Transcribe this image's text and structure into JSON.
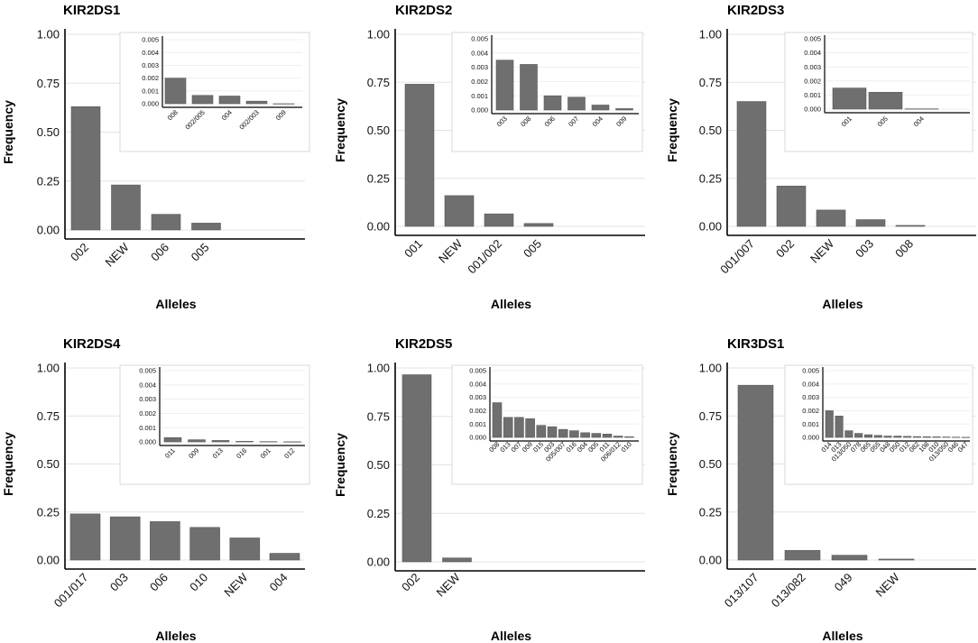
{
  "chart_data": [
    {
      "type": "bar",
      "title": "KIR2DS1",
      "xlabel": "Alleles",
      "ylabel": "Frequency",
      "ylim": [
        0,
        1
      ],
      "yticks": [
        "0.00",
        "0.25",
        "0.50",
        "0.75",
        "1.00"
      ],
      "categories": [
        "002",
        "NEW",
        "006",
        "005"
      ],
      "values": [
        0.63,
        0.23,
        0.08,
        0.035
      ],
      "inset": {
        "type": "bar",
        "ylim": [
          0,
          0.005
        ],
        "yticks": [
          "0.000",
          "0.001",
          "0.002",
          "0.003",
          "0.004",
          "0.005"
        ],
        "categories": [
          "008",
          "002/005",
          "004",
          "002/003",
          "009"
        ],
        "values": [
          0.002,
          0.00065,
          0.0006,
          0.0002,
          0.0
        ]
      }
    },
    {
      "type": "bar",
      "title": "KIR2DS2",
      "xlabel": "Alleles",
      "ylabel": "Frequency",
      "ylim": [
        0,
        1
      ],
      "yticks": [
        "0.00",
        "0.25",
        "0.50",
        "0.75",
        "1.00"
      ],
      "categories": [
        "001",
        "NEW",
        "001/002",
        "005"
      ],
      "values": [
        0.74,
        0.16,
        0.065,
        0.015
      ],
      "inset": {
        "type": "bar",
        "ylim": [
          0,
          0.005
        ],
        "yticks": [
          "0.000",
          "0.001",
          "0.002",
          "0.003",
          "0.004",
          "0.005"
        ],
        "categories": [
          "003",
          "008",
          "006",
          "007",
          "004",
          "009"
        ],
        "values": [
          0.0035,
          0.0032,
          0.001,
          0.0009,
          0.00035,
          0.0001
        ]
      }
    },
    {
      "type": "bar",
      "title": "KIR2DS3",
      "xlabel": "Alleles",
      "ylabel": "Frequency",
      "ylim": [
        0,
        1
      ],
      "yticks": [
        "0.00",
        "0.25",
        "0.50",
        "0.75",
        "1.00"
      ],
      "categories": [
        "001/007",
        "002",
        "NEW",
        "003",
        "008"
      ],
      "values": [
        0.65,
        0.21,
        0.085,
        0.035,
        0.005
      ],
      "inset": {
        "type": "bar",
        "ylim": [
          0,
          0.005
        ],
        "yticks": [
          "0.000",
          "0.001",
          "0.002",
          "0.003",
          "0.004",
          "0.005"
        ],
        "categories": [
          "001",
          "005",
          "004"
        ],
        "values": [
          0.0015,
          0.0012,
          2e-05
        ]
      }
    },
    {
      "type": "bar",
      "title": "KIR2DS4",
      "xlabel": "Alleles",
      "ylabel": "Frequency",
      "ylim": [
        0,
        1
      ],
      "yticks": [
        "0.00",
        "0.25",
        "0.50",
        "0.75",
        "1.00"
      ],
      "categories": [
        "001/017",
        "003",
        "006",
        "010",
        "NEW",
        "004"
      ],
      "values": [
        0.24,
        0.225,
        0.2,
        0.17,
        0.115,
        0.035
      ],
      "inset": {
        "type": "bar",
        "ylim": [
          0,
          0.005
        ],
        "yticks": [
          "0.000",
          "0.001",
          "0.002",
          "0.003",
          "0.004",
          "0.005"
        ],
        "categories": [
          "011",
          "009",
          "013",
          "016",
          "001",
          "012"
        ],
        "values": [
          0.0003,
          0.00015,
          0.0001,
          4e-05,
          2e-05,
          1e-05
        ]
      }
    },
    {
      "type": "bar",
      "title": "KIR2DS5",
      "xlabel": "Alleles",
      "ylabel": "Frequency",
      "ylim": [
        0,
        1
      ],
      "yticks": [
        "0.00",
        "0.25",
        "0.50",
        "0.75",
        "1.00"
      ],
      "categories": [
        "002",
        "NEW"
      ],
      "values": [
        0.965,
        0.02
      ],
      "inset": {
        "type": "bar",
        "ylim": [
          0,
          0.005
        ],
        "yticks": [
          "0.000",
          "0.001",
          "0.002",
          "0.003",
          "0.004",
          "0.005"
        ],
        "categories": [
          "008",
          "013",
          "007",
          "009",
          "015",
          "003",
          "005/007",
          "016",
          "004",
          "005",
          "011",
          "006/012",
          "010"
        ],
        "values": [
          0.0026,
          0.0015,
          0.0015,
          0.0014,
          0.0009,
          0.0008,
          0.0006,
          0.0005,
          0.00035,
          0.0003,
          0.00025,
          0.0001,
          5e-05
        ]
      }
    },
    {
      "type": "bar",
      "title": "KIR3DS1",
      "xlabel": "Alleles",
      "ylabel": "Frequency",
      "ylim": [
        0,
        1
      ],
      "yticks": [
        "0.00",
        "0.25",
        "0.50",
        "0.75",
        "1.00"
      ],
      "categories": [
        "013/107",
        "013/082",
        "049",
        "NEW"
      ],
      "values": [
        0.91,
        0.05,
        0.025,
        0.005
      ],
      "inset": {
        "type": "bar",
        "ylim": [
          0,
          0.005
        ],
        "yticks": [
          "0.000",
          "0.001",
          "0.002",
          "0.003",
          "0.004",
          "0.005"
        ],
        "categories": [
          "014",
          "013",
          "013/050",
          "078",
          "065",
          "055",
          "048",
          "050",
          "012",
          "082",
          "108",
          "010",
          "013/050",
          "046",
          "047"
        ],
        "values": [
          0.002,
          0.0016,
          0.0005,
          0.0003,
          0.0002,
          0.00015,
          0.0001,
          0.0001,
          8e-05,
          6e-05,
          5e-05,
          4e-05,
          3e-05,
          2e-05,
          1e-05
        ]
      }
    }
  ]
}
